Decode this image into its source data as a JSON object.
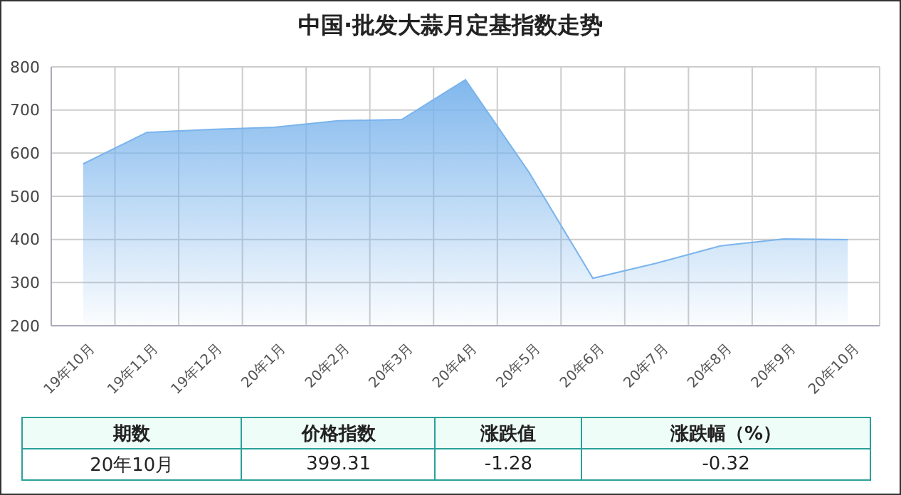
{
  "chart_data": {
    "type": "area",
    "title": "中国·批发大蒜月定基指数走势",
    "categories": [
      "19年10月",
      "19年11月",
      "19年12月",
      "20年1月",
      "20年2月",
      "20年3月",
      "20年4月",
      "20年5月",
      "20年6月",
      "20年7月",
      "20年8月",
      "20年9月",
      "20年10月"
    ],
    "series": [
      {
        "color": "#7ab4ec",
        "values": [
          575,
          648,
          655,
          660,
          675,
          678,
          770,
          555,
          310,
          345,
          385,
          401,
          399.31
        ]
      }
    ],
    "ylim": [
      200,
      800
    ],
    "yticks": [
      200,
      300,
      400,
      500,
      600,
      700,
      800
    ],
    "grid": true,
    "legend": false,
    "annotations": [
      "期数",
      "价格指数",
      "涨跌值",
      "涨跌幅（%）",
      "20年10月",
      "399.31",
      "-1.28",
      "-0.32"
    ]
  }
}
